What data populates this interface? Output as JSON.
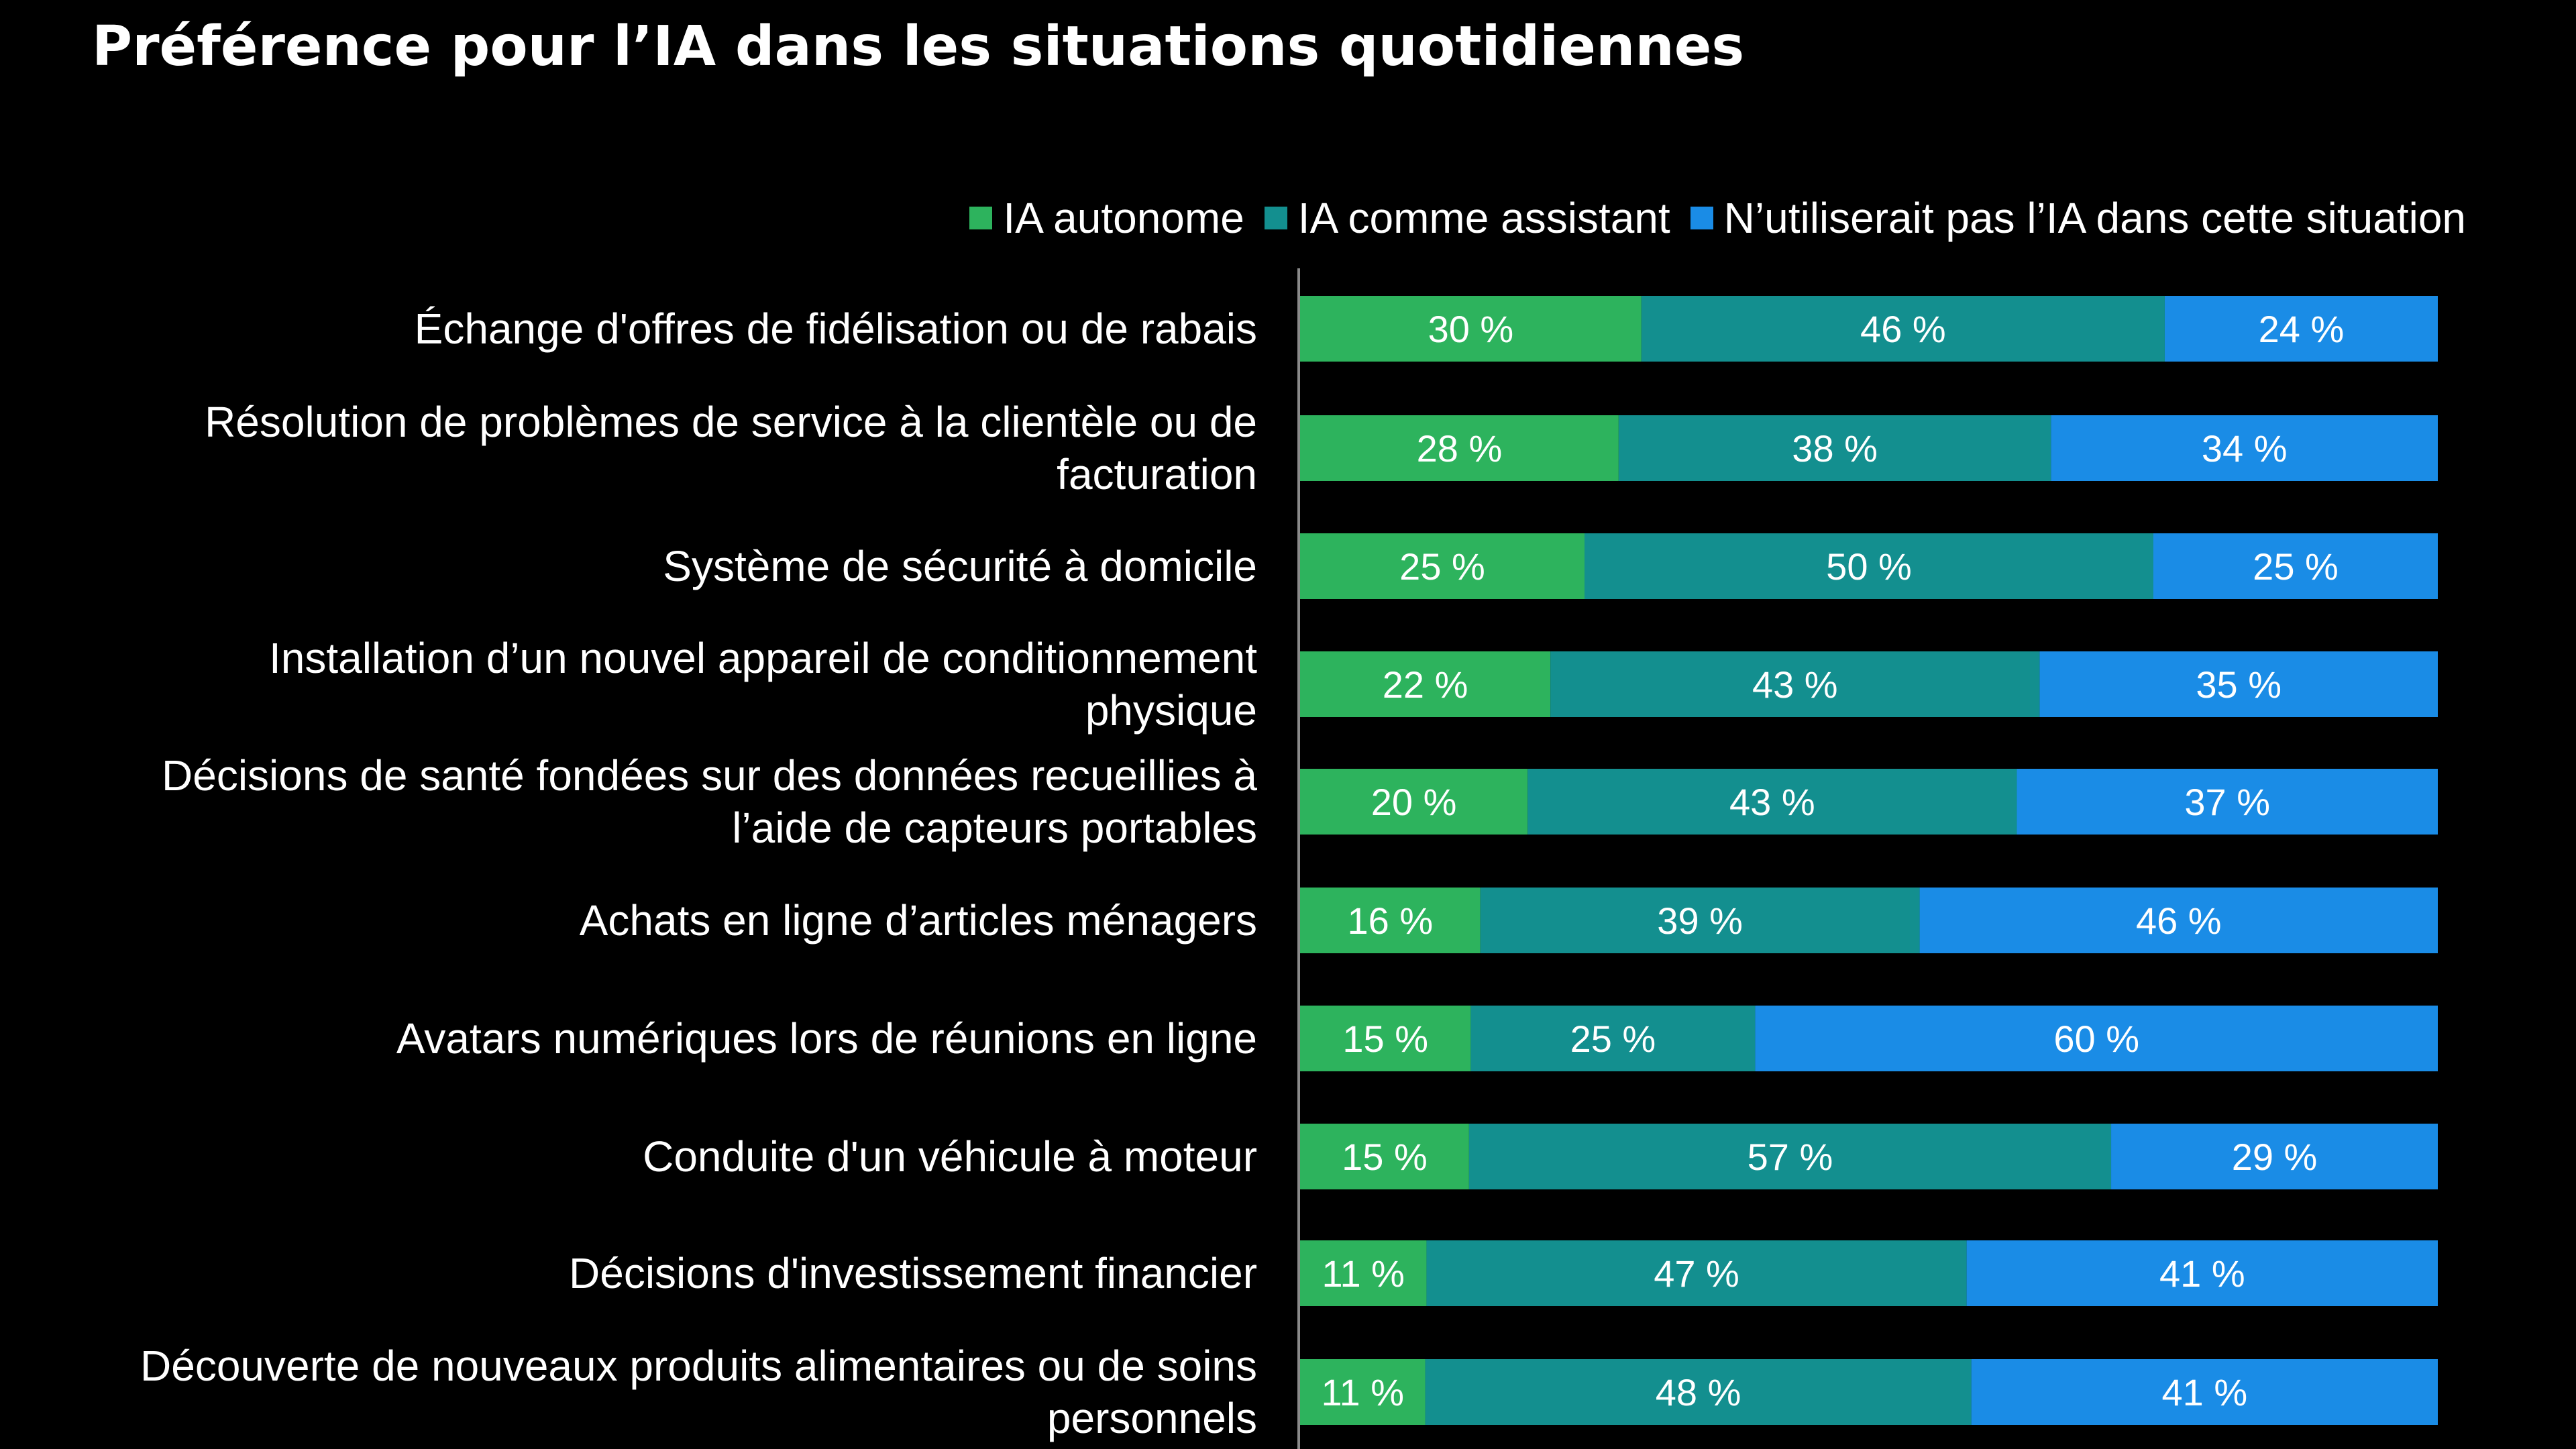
{
  "title": "Préférence pour l’IA dans les situations quotidiennes",
  "colors": {
    "background": "#000000",
    "text": "#ffffff",
    "axis": "#8a8a8a"
  },
  "chart_data": {
    "type": "bar",
    "orientation": "horizontal",
    "stacked": true,
    "title": "Préférence pour l’IA dans les situations quotidiennes",
    "legend_position": "top-right",
    "grid": false,
    "xlim": [
      0,
      100
    ],
    "categories": [
      [
        "Échange d'offres de fidélisation ou de rabais"
      ],
      [
        "Résolution de problèmes de service à la clientèle ou de",
        "facturation"
      ],
      [
        "Système de sécurité à domicile"
      ],
      [
        "Installation d’un nouvel appareil de conditionnement",
        "physique"
      ],
      [
        "Décisions de santé fondées sur des données recueillies à",
        "l’aide de capteurs portables"
      ],
      [
        "Achats en ligne d’articles ménagers"
      ],
      [
        "Avatars numériques lors de réunions en ligne"
      ],
      [
        "Conduite d'un véhicule à moteur"
      ],
      [
        "Décisions d'investissement financier"
      ],
      [
        "Découverte de nouveaux produits alimentaires ou de soins",
        "personnels"
      ]
    ],
    "series": [
      {
        "name": "IA autonome",
        "color": "#2db35d",
        "values": [
          30,
          28,
          25,
          22,
          20,
          16,
          15,
          15,
          11,
          11
        ],
        "labels": [
          "30 %",
          "28 %",
          "25 %",
          "22 %",
          "20 %",
          "16 %",
          "15 %",
          "15 %",
          "11 %",
          "11 %"
        ]
      },
      {
        "name": "IA comme assistant",
        "color": "#138f8f",
        "values": [
          46,
          38,
          50,
          43,
          43,
          39,
          25,
          57,
          47,
          48
        ],
        "labels": [
          "46 %",
          "38 %",
          "50 %",
          "43 %",
          "43 %",
          "39 %",
          "25 %",
          "57 %",
          "47 %",
          "48 %"
        ]
      },
      {
        "name": "N’utiliserait pas l’IA dans cette situation",
        "color": "#1a8ce6",
        "values": [
          24,
          34,
          25,
          35,
          37,
          46,
          60,
          29,
          41,
          41
        ],
        "labels": [
          "24 %",
          "34 %",
          "25 %",
          "35 %",
          "37 %",
          "46 %",
          "60 %",
          "29 %",
          "41 %",
          "41 %"
        ]
      }
    ]
  }
}
